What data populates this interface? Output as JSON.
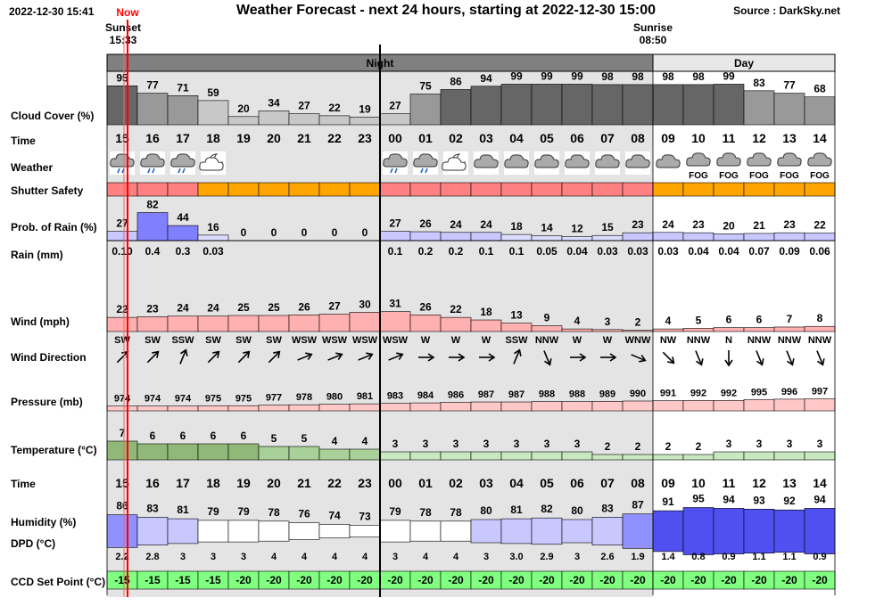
{
  "header": {
    "timestamp": "2022-12-30 15:41",
    "title": "Weather Forecast - next 24 hours, starting at 2022-12-30 15:00",
    "source": "Source : DarkSky.net"
  },
  "markers": {
    "now_label": "Now",
    "sunset_label": "Sunset",
    "sunset_time": "15:33",
    "sunrise_label": "Sunrise",
    "sunrise_time": "08:50",
    "night_label": "Night",
    "day_label": "Day"
  },
  "labels": {
    "cloud_cover": "Cloud Cover (%)",
    "time": "Time",
    "weather": "Weather",
    "shutter_safety": "Shutter Safety",
    "prob_rain": "Prob. of Rain (%)",
    "rain": "Rain (mm)",
    "wind": "Wind (mph)",
    "wind_direction": "Wind Direction",
    "pressure": "Pressure (mb)",
    "temperature": "Temperature (°C)",
    "time2": "Time",
    "humidity": "Humidity (%)",
    "dpd": "DPD (°C)",
    "ccd": "CCD Set Point (°C)"
  },
  "hours": [
    "15",
    "16",
    "17",
    "18",
    "19",
    "20",
    "21",
    "22",
    "23",
    "00",
    "01",
    "02",
    "03",
    "04",
    "05",
    "06",
    "07",
    "08",
    "09",
    "10",
    "11",
    "12",
    "13",
    "14"
  ],
  "cloud_cover": [
    95,
    77,
    71,
    59,
    20,
    34,
    27,
    22,
    19,
    27,
    75,
    86,
    94,
    99,
    99,
    99,
    98,
    98,
    98,
    98,
    99,
    83,
    77,
    68
  ],
  "weather_icons": [
    "cloud-rain",
    "cloud-rain",
    "cloud-rain",
    "partly-cloudy-night",
    "",
    "",
    "",
    "",
    "",
    "cloud-rain",
    "cloud-rain",
    "partly-cloudy-night",
    "cloud",
    "cloud",
    "cloud",
    "cloud",
    "cloud",
    "cloud",
    "cloud",
    "fog",
    "fog",
    "fog",
    "fog",
    "fog"
  ],
  "weather_text": [
    "",
    "",
    "",
    "",
    "",
    "",
    "",
    "",
    "",
    "",
    "",
    "",
    "",
    "",
    "",
    "",
    "",
    "",
    "",
    "FOG",
    "FOG",
    "FOG",
    "FOG",
    "FOG"
  ],
  "shutter_safety": [
    "red",
    "red",
    "red",
    "orange",
    "orange",
    "orange",
    "orange",
    "orange",
    "orange",
    "red",
    "red",
    "red",
    "red",
    "red",
    "red",
    "red",
    "red",
    "red",
    "orange",
    "orange",
    "orange",
    "orange",
    "orange",
    "orange"
  ],
  "prob_rain": [
    27,
    82,
    44,
    16,
    0,
    0,
    0,
    0,
    0,
    27,
    26,
    24,
    24,
    18,
    14,
    12,
    15,
    23,
    24,
    23,
    20,
    21,
    23,
    22
  ],
  "rain": [
    "0.10",
    "0.4",
    "0.3",
    "0.03",
    "",
    "",
    "",
    "",
    "",
    "0.1",
    "0.2",
    "0.2",
    "0.1",
    "0.1",
    "0.05",
    "0.04",
    "0.03",
    "0.03",
    "0.03",
    "0.04",
    "0.04",
    "0.07",
    "0.09",
    "0.06"
  ],
  "wind": [
    22,
    23,
    24,
    24,
    25,
    25,
    26,
    27,
    30,
    31,
    26,
    22,
    18,
    13,
    9,
    4,
    3,
    2,
    4,
    5,
    6,
    6,
    7,
    8
  ],
  "wind_direction": [
    "SW",
    "SW",
    "SSW",
    "SW",
    "SW",
    "SW",
    "WSW",
    "WSW",
    "WSW",
    "WSW",
    "W",
    "W",
    "W",
    "SSW",
    "NNW",
    "W",
    "W",
    "WNW",
    "NW",
    "NNW",
    "N",
    "NNW",
    "NNW",
    "NNW"
  ],
  "pressure": [
    974,
    974,
    974,
    975,
    975,
    977,
    978,
    980,
    981,
    983,
    984,
    986,
    987,
    987,
    988,
    988,
    989,
    990,
    991,
    992,
    992,
    995,
    996,
    997
  ],
  "temperature": [
    7,
    6,
    6,
    6,
    6,
    5,
    5,
    4,
    4,
    3,
    3,
    3,
    3,
    3,
    3,
    3,
    2,
    2,
    2,
    2,
    3,
    3,
    3,
    3
  ],
  "humidity": [
    86,
    83,
    81,
    79,
    79,
    78,
    76,
    74,
    73,
    79,
    78,
    78,
    80,
    81,
    82,
    80,
    83,
    87,
    91,
    95,
    94,
    93,
    92,
    94
  ],
  "dpd": [
    "2.2",
    "2.8",
    "3",
    "3",
    "3",
    "4",
    "4",
    "4",
    "4",
    "3",
    "4",
    "4",
    "3",
    "3.0",
    "2.9",
    "3",
    "2.6",
    "1.9",
    "1.4",
    "0.8",
    "0.9",
    "1.1",
    "1.1",
    "0.9"
  ],
  "ccd_set_point": [
    -15,
    -15,
    -15,
    -15,
    -20,
    -20,
    -20,
    -20,
    -20,
    -20,
    -20,
    -20,
    -20,
    -20,
    -20,
    -20,
    -20,
    -20,
    -20,
    -20,
    -20,
    -20,
    -20,
    -20
  ],
  "colors": {
    "night_band": "#808080",
    "night_bg": "#e4e4e4",
    "day_bg": "#ffffff",
    "cloud_high": "#666666",
    "cloud_mid": "#999999",
    "cloud_low": "#c8c8c8",
    "shutter_red": "#ff8080",
    "shutter_orange": "#ffa500",
    "rain_bar": "#8080ff",
    "wind_bar": "#ffb0b0",
    "pressure_bar": "#ffc8c8",
    "temp_bar": "#a0c890",
    "humidity_bar": "#6060ff",
    "ccd_green": "#80ff80",
    "now_line": "#ff0000"
  }
}
